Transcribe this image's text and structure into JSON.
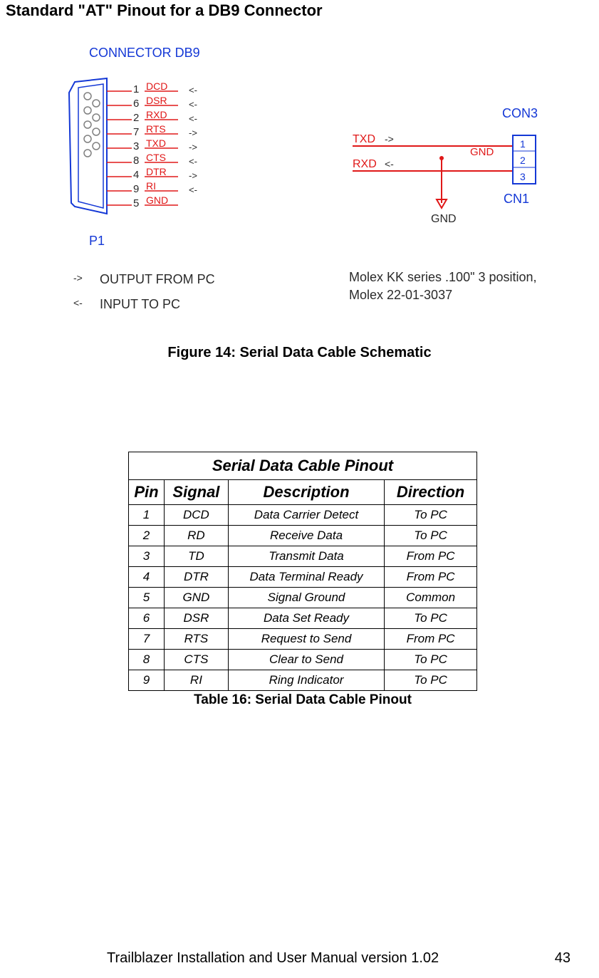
{
  "page_title": "Standard \"AT\" Pinout for a DB9 Connector",
  "figure_caption": "Figure 14: Serial Data Cable Schematic",
  "table_title": "Serial Data Cable Pinout",
  "table_caption": "Table 16: Serial Data Cable Pinout",
  "columns": {
    "pin": "Pin",
    "signal": "Signal",
    "description": "Description",
    "direction": "Direction"
  },
  "rows": [
    {
      "pin": "1",
      "signal": "DCD",
      "description": "Data Carrier Detect",
      "direction": "To PC"
    },
    {
      "pin": "2",
      "signal": "RD",
      "description": "Receive Data",
      "direction": "To PC"
    },
    {
      "pin": "3",
      "signal": "TD",
      "description": "Transmit Data",
      "direction": "From PC"
    },
    {
      "pin": "4",
      "signal": "DTR",
      "description": "Data Terminal Ready",
      "direction": "From PC"
    },
    {
      "pin": "5",
      "signal": "GND",
      "description": "Signal Ground",
      "direction": "Common"
    },
    {
      "pin": "6",
      "signal": "DSR",
      "description": "Data Set Ready",
      "direction": "To PC"
    },
    {
      "pin": "7",
      "signal": "RTS",
      "description": "Request to Send",
      "direction": "From PC"
    },
    {
      "pin": "8",
      "signal": "CTS",
      "description": "Clear to Send",
      "direction": "To PC"
    },
    {
      "pin": "9",
      "signal": "RI",
      "description": "Ring Indicator",
      "direction": "To PC"
    }
  ],
  "footer": {
    "text": "Trailblazer Installation and User Manual version 1.02",
    "page": "43"
  },
  "schematic": {
    "colors": {
      "blue": "#1438d6",
      "red": "#e01818",
      "black": "#2a2a2a",
      "gray": "#4a4a4a",
      "light": "#d8d8d8"
    },
    "db9": {
      "title": "CONNECTOR DB9",
      "ref": "P1",
      "pins": [
        {
          "num": "1",
          "sig": "DCD",
          "dir": "<-"
        },
        {
          "num": "6",
          "sig": "DSR",
          "dir": "<-"
        },
        {
          "num": "2",
          "sig": "RXD",
          "dir": "<-"
        },
        {
          "num": "7",
          "sig": "RTS",
          "dir": "->"
        },
        {
          "num": "3",
          "sig": "TXD",
          "dir": "->"
        },
        {
          "num": "8",
          "sig": "CTS",
          "dir": "<-"
        },
        {
          "num": "4",
          "sig": "DTR",
          "dir": "->"
        },
        {
          "num": "9",
          "sig": "RI",
          "dir": "<-"
        },
        {
          "num": "5",
          "sig": "GND",
          "dir": ""
        }
      ]
    },
    "legend": {
      "out": {
        "sym": "->",
        "text": "OUTPUT FROM PC"
      },
      "in": {
        "sym": "<-",
        "text": "INPUT TO PC"
      }
    },
    "con3": {
      "title": "CON3",
      "ref": "CN1",
      "txd": {
        "label": "TXD",
        "dir": "->"
      },
      "rxd": {
        "label": "RXD",
        "dir": "<-"
      },
      "gnd_top": "GND",
      "gnd_bot": "GND",
      "pins": [
        "1",
        "2",
        "3"
      ],
      "note1": "Molex KK series .100\" 3 position,",
      "note2": "Molex 22-01-3037"
    }
  }
}
